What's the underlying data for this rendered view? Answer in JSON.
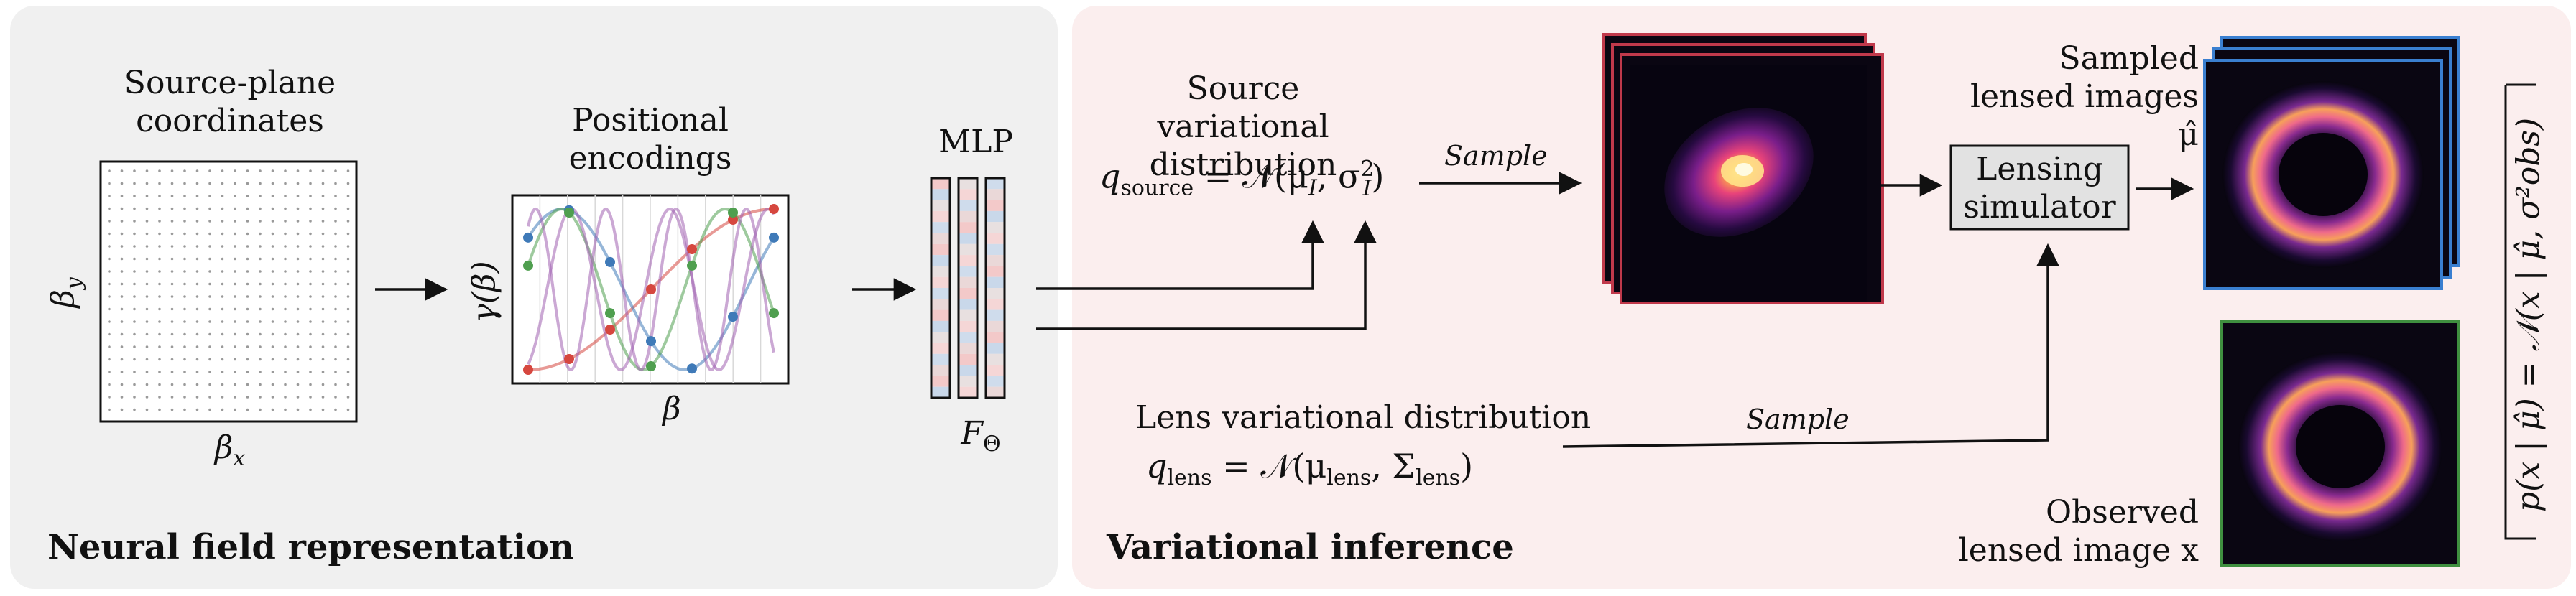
{
  "left_panel": {
    "title": "Neural field representation",
    "source_plane_label": "Source-plane coordinates",
    "beta_x": "β",
    "beta_x_sub": "x",
    "beta_y": "β",
    "beta_y_sub": "y",
    "pos_enc_label": "Positional encodings",
    "gamma_label": "γ(β)",
    "beta_label": "β",
    "mlp_label": "MLP",
    "f_theta": "F",
    "f_theta_sub": "Θ"
  },
  "right_panel": {
    "title": "Variational inference",
    "source_var_label": "Source variational distribution",
    "q_source": "q",
    "q_source_sub": "source",
    "q_source_rhs": "= 𝒩(μ",
    "q_source_rhs_sub": "I",
    "q_source_rhs_tail": ", σ",
    "q_source_rhs_tail_sub": "I",
    "q_source_rhs_tail_sup": "2",
    "q_source_close": ")",
    "sample_1": "Sample",
    "lens_var_label": "Lens variational distribution",
    "q_lens": "q",
    "q_lens_sub": "lens",
    "q_lens_rhs": "= 𝒩(μ",
    "q_lens_rhs_sub": "lens",
    "q_lens_rhs_mid": ", Σ",
    "q_lens_rhs_mid_sub": "lens",
    "q_lens_close": ")",
    "sample_2": "Sample",
    "lensing_simulator": "Lensing simulator",
    "sampled_lensed_label": "Sampled lensed images μ̂",
    "observed_lensed_label": "Observed lensed image x",
    "likelihood": "p(x | μ̂) = 𝒩(x | μ̂, σ²obs)"
  },
  "colors": {
    "source_frame": "#c0394b",
    "sample_frame": "#3a7fd0",
    "observed_frame": "#3f8f3f",
    "enc_red": "#d6473f",
    "enc_blue": "#3f7ab8",
    "enc_green": "#4f9f4f",
    "enc_purple": "#a060b0"
  }
}
